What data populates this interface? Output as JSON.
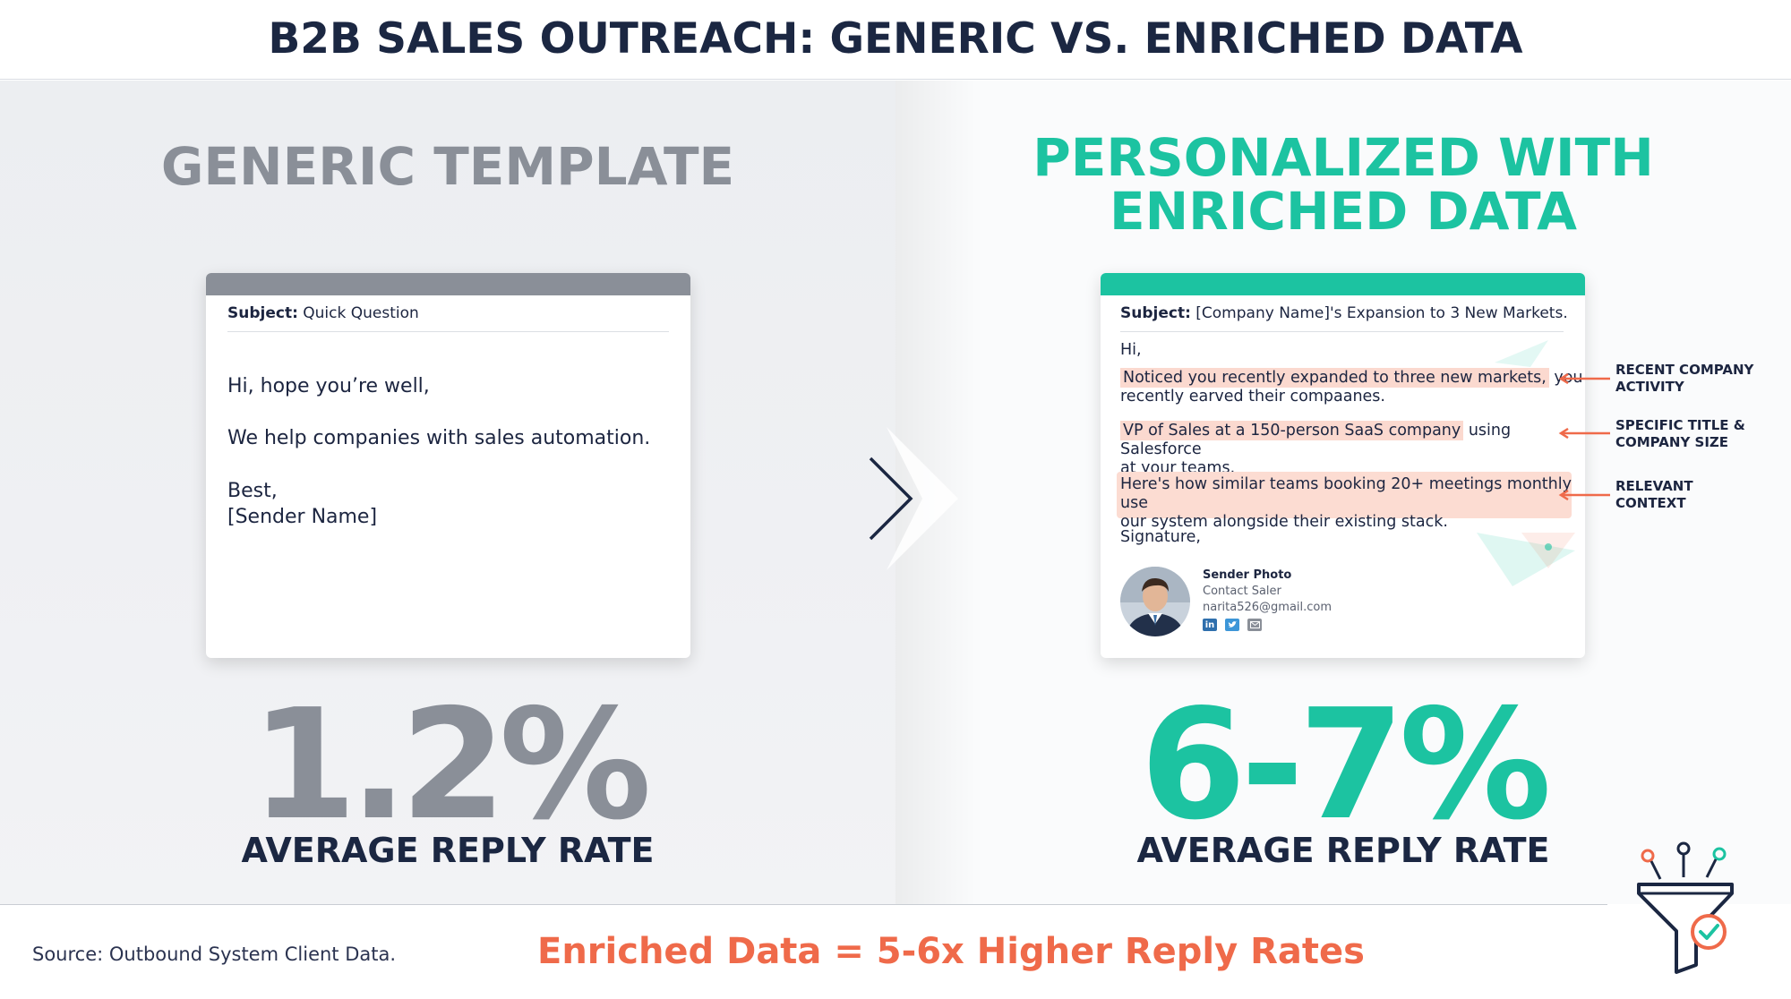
{
  "header": {
    "title": "B2B SALES OUTREACH: GENERIC VS. ENRICHED DATA"
  },
  "left": {
    "heading": "GENERIC TEMPLATE",
    "email": {
      "subject_label": "Subject:",
      "subject_text": "Quick Question",
      "greeting": "Hi, hope you’re well,",
      "body": "We help companies with sales automation.",
      "closing": "Best,",
      "sender": "[Sender Name]"
    },
    "stat": "1.2%",
    "stat_label": "AVERAGE REPLY RATE"
  },
  "right": {
    "heading_line1": "PERSONALIZED WITH",
    "heading_line2": "ENRICHED DATA",
    "email": {
      "subject_label": "Subject:",
      "subject_text": "[Company Name]'s Expansion to 3 New Markets.",
      "greeting": "Hi,",
      "p1_highlight": "Noticed you recently expanded to three new markets,",
      "p1_rest": " you",
      "p1_line2": "recently earved their compaanes.",
      "p2_highlight": "VP of Sales at a 150-person SaaS company",
      "p2_rest": " using Salesforce",
      "p2_line2": "at your teams.",
      "p3_line1": "Here's how similar teams booking 20+ meetings monthly use",
      "p3_line2": "our system alongside their existing stack.",
      "signature": "Signature,",
      "sig_name": "Sender Photo",
      "sig_title": "Contact Saler",
      "sig_email": "narita526@gmail.com"
    },
    "annotations": [
      {
        "line1": "RECENT COMPANY",
        "line2": "ACTIVITY"
      },
      {
        "line1": "SPECIFIC TITLE &",
        "line2": "COMPANY SIZE"
      },
      {
        "line1": "RELEVANT",
        "line2": "CONTEXT"
      }
    ],
    "stat": "6-7%",
    "stat_label": "AVERAGE REPLY RATE"
  },
  "footer": {
    "source": "Source: Outbound System Client Data.",
    "tagline": "Enriched Data = 5-6x Higher Reply Rates"
  },
  "colors": {
    "accent_teal": "#1cc3a1",
    "accent_orange": "#ef6a4a",
    "neutral_gray": "#8a8f98",
    "navy": "#1b2742",
    "highlight": "#fbd9cf"
  },
  "icons": [
    "chevron-right-icon",
    "linkedin-icon",
    "twitter-icon",
    "mail-icon",
    "funnel-icon",
    "check-circle-icon",
    "arrow-left-icon"
  ]
}
